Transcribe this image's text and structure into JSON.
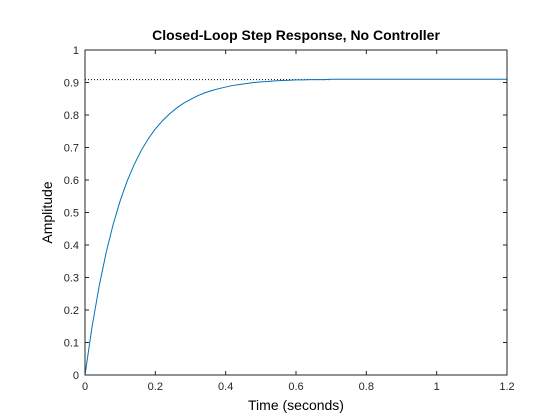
{
  "chart_data": {
    "type": "line",
    "title": "Closed-Loop Step Response, No Controller",
    "xlabel": "Time (seconds)",
    "ylabel": "Amplitude",
    "xlim": [
      0,
      1.2
    ],
    "ylim": [
      0,
      1
    ],
    "xticks": [
      0,
      0.2,
      0.4,
      0.6,
      0.8,
      1,
      1.2
    ],
    "xtick_labels": [
      "0",
      "0.2",
      "0.4",
      "0.6",
      "0.8",
      "1",
      "1.2"
    ],
    "yticks": [
      0,
      0.1,
      0.2,
      0.3,
      0.4,
      0.5,
      0.6,
      0.7,
      0.8,
      0.9,
      1
    ],
    "ytick_labels": [
      "0",
      "0.1",
      "0.2",
      "0.3",
      "0.4",
      "0.5",
      "0.6",
      "0.7",
      "0.8",
      "0.9",
      "1"
    ],
    "grid": false,
    "series": [
      {
        "color": "#0072BD",
        "x": [
          0,
          0.02,
          0.04,
          0.06,
          0.08,
          0.1,
          0.12,
          0.14,
          0.16,
          0.18,
          0.2,
          0.22,
          0.24,
          0.26,
          0.28,
          0.3,
          0.32,
          0.34,
          0.36,
          0.38,
          0.4,
          0.42,
          0.44,
          0.46,
          0.48,
          0.5,
          0.52,
          0.54,
          0.56,
          0.58,
          0.6,
          0.62,
          0.64,
          0.66,
          0.68,
          0.7,
          0.75,
          0.8,
          0.9,
          1.0,
          1.1,
          1.2
        ],
        "y": [
          0,
          0.148,
          0.272,
          0.376,
          0.463,
          0.536,
          0.597,
          0.648,
          0.691,
          0.727,
          0.757,
          0.782,
          0.803,
          0.821,
          0.836,
          0.848,
          0.859,
          0.868,
          0.875,
          0.881,
          0.886,
          0.891,
          0.894,
          0.897,
          0.9,
          0.902,
          0.903,
          0.905,
          0.906,
          0.907,
          0.908,
          0.908,
          0.909,
          0.909,
          0.909,
          0.91,
          0.91,
          0.91,
          0.91,
          0.91,
          0.91,
          0.91
        ]
      }
    ],
    "reference_line": {
      "y": 0.909,
      "x_start": 0,
      "x_end": 0.7,
      "style": "dotted",
      "color": "#000000"
    }
  }
}
